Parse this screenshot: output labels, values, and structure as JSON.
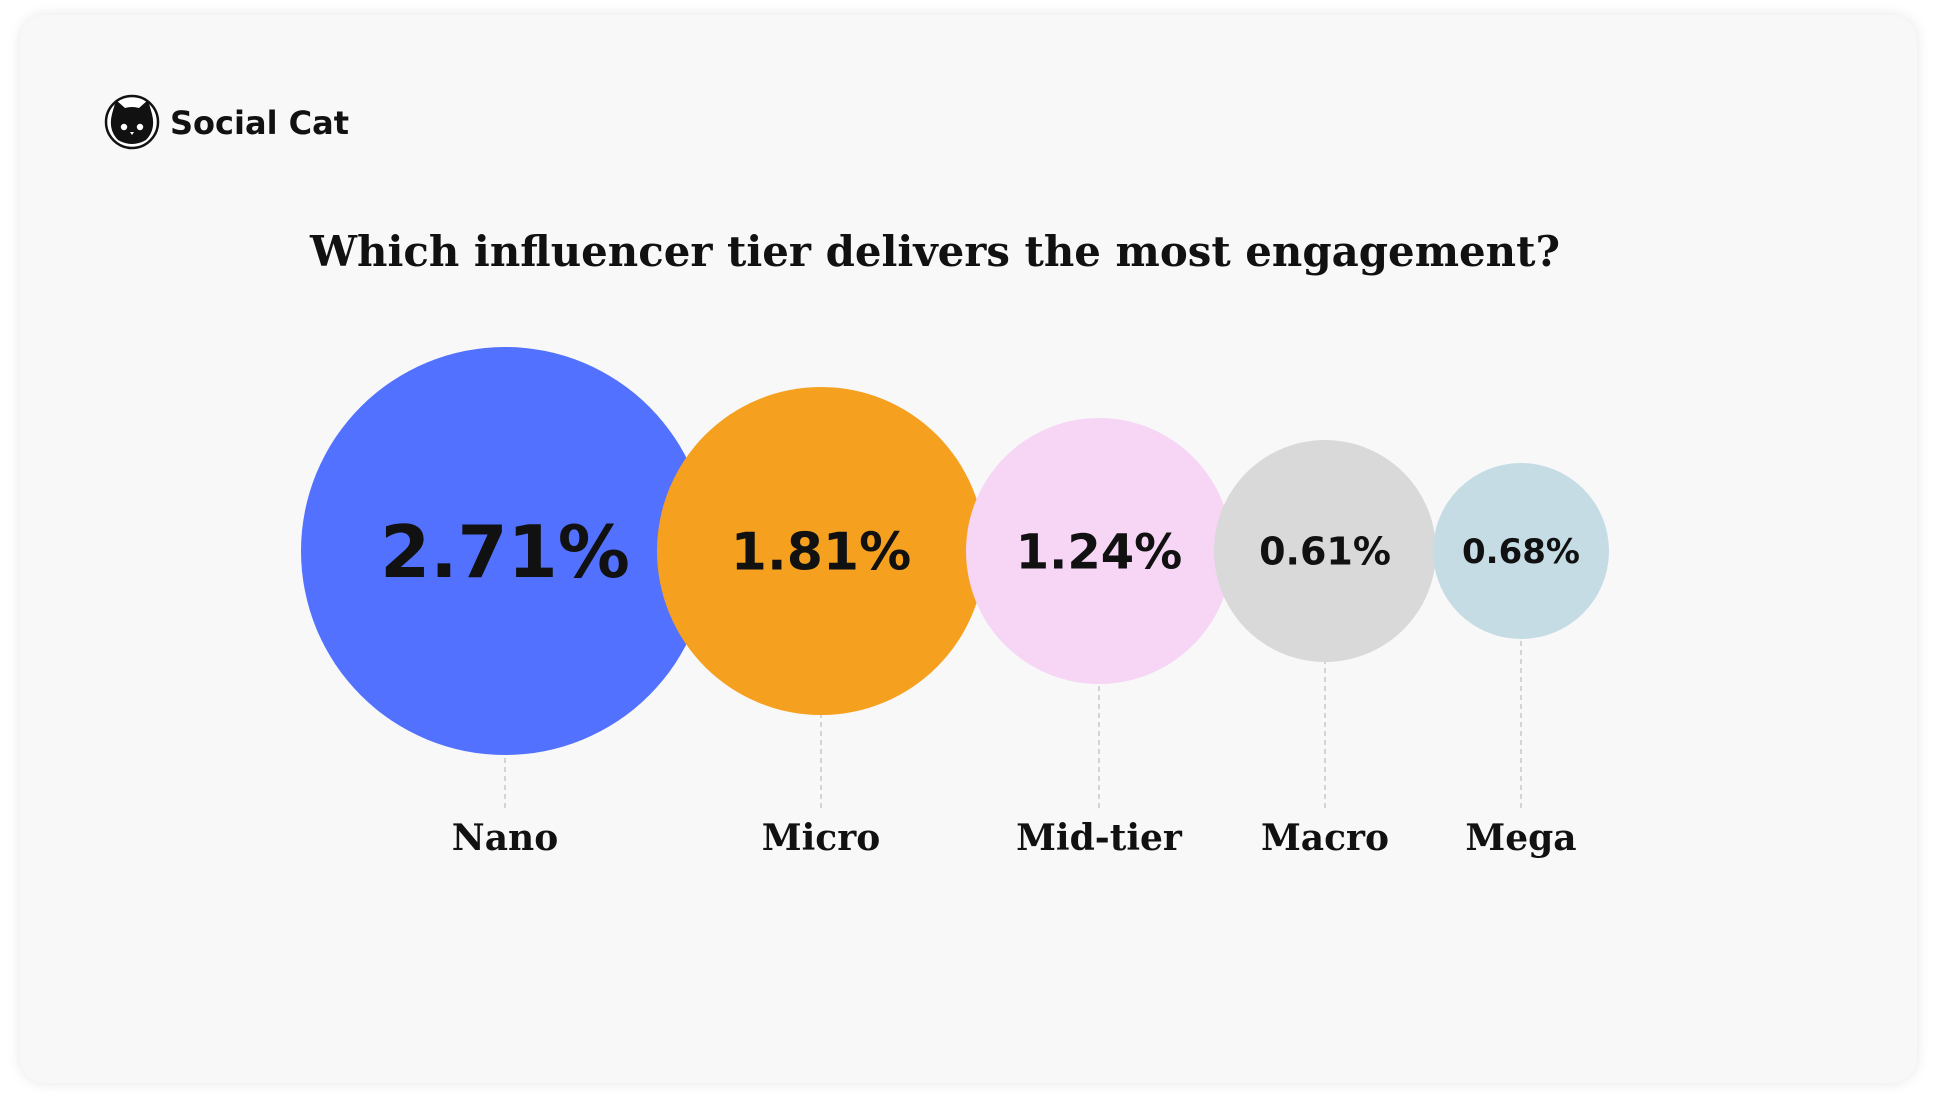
{
  "brand": {
    "name": "Social Cat",
    "logo_icon": "cat-head-icon"
  },
  "chart_data": {
    "type": "bubble",
    "title": "Which influencer tier delivers the most engagement?",
    "categories": [
      "Nano",
      "Micro",
      "Mid-tier",
      "Macro",
      "Mega"
    ],
    "values": [
      2.71,
      1.81,
      1.24,
      0.61,
      0.68
    ],
    "value_labels": [
      "2.71%",
      "1.81%",
      "1.24%",
      "0.61%",
      "0.68%"
    ],
    "unit": "%",
    "colors": [
      "#5271ff",
      "#f5a01e",
      "#f6d5f5",
      "#d9d9d9",
      "#c5dce5"
    ],
    "grid": false,
    "legend": "none"
  }
}
